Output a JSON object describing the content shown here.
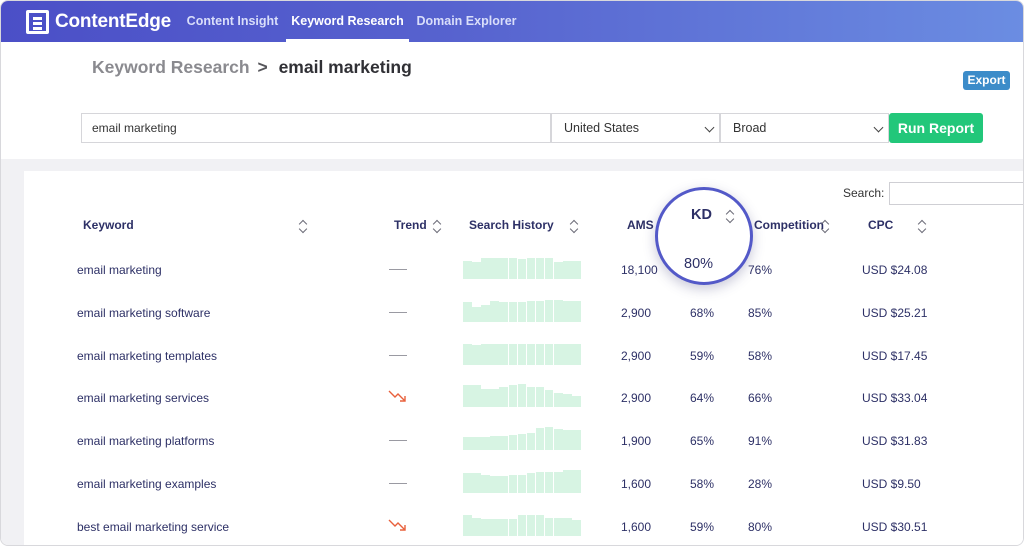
{
  "app": {
    "name": "ContentEdge"
  },
  "nav": {
    "tabs": [
      {
        "label": "Content Insight",
        "active": false
      },
      {
        "label": "Keyword Research",
        "active": true
      },
      {
        "label": "Domain Explorer",
        "active": false
      }
    ]
  },
  "breadcrumb": {
    "parent": "Keyword Research",
    "separator": ">",
    "current": "email marketing"
  },
  "export_label": "Export",
  "query": {
    "keyword_value": "email marketing",
    "country": "United States",
    "match_type": "Broad",
    "run_label": "Run Report"
  },
  "table_search": {
    "label": "Search:",
    "value": ""
  },
  "columns": {
    "keyword": "Keyword",
    "trend": "Trend",
    "history": "Search History",
    "ams": "AMS",
    "kd": "KD",
    "competition": "Competition",
    "cpc": "CPC"
  },
  "spotlight": {
    "label": "KD",
    "value": "80%"
  },
  "rows": [
    {
      "keyword": "email marketing",
      "trend": "flat",
      "history": [
        0.78,
        0.72,
        0.9,
        0.92,
        0.92,
        0.92,
        0.88,
        0.92,
        0.92,
        0.92,
        0.75,
        0.8,
        0.78
      ],
      "ams": "18,100",
      "kd": "80%",
      "competition": "76%",
      "cpc": "USD $24.08"
    },
    {
      "keyword": "email marketing software",
      "trend": "flat",
      "history": [
        0.85,
        0.65,
        0.75,
        0.9,
        0.85,
        0.85,
        0.85,
        0.9,
        0.9,
        0.95,
        0.95,
        0.9,
        0.9
      ],
      "ams": "2,900",
      "kd": "68%",
      "competition": "85%",
      "cpc": "USD $25.21"
    },
    {
      "keyword": "email marketing templates",
      "trend": "flat",
      "history": [
        0.9,
        0.85,
        0.92,
        0.92,
        0.92,
        0.92,
        0.92,
        0.92,
        0.92,
        0.92,
        0.92,
        0.92,
        0.92
      ],
      "ams": "2,900",
      "kd": "59%",
      "competition": "58%",
      "cpc": "USD $17.45"
    },
    {
      "keyword": "email marketing services",
      "trend": "down",
      "history": [
        0.95,
        0.95,
        0.8,
        0.8,
        0.88,
        0.95,
        1.0,
        0.88,
        0.88,
        0.75,
        0.6,
        0.55,
        0.5
      ],
      "ams": "2,900",
      "kd": "64%",
      "competition": "66%",
      "cpc": "USD $33.04"
    },
    {
      "keyword": "email marketing platforms",
      "trend": "flat",
      "history": [
        0.55,
        0.55,
        0.55,
        0.6,
        0.6,
        0.65,
        0.68,
        0.75,
        0.95,
        1.0,
        0.9,
        0.85,
        0.88
      ],
      "ams": "1,900",
      "kd": "65%",
      "competition": "91%",
      "cpc": "USD $31.83"
    },
    {
      "keyword": "email marketing examples",
      "trend": "flat",
      "history": [
        0.85,
        0.85,
        0.8,
        0.75,
        0.75,
        0.8,
        0.8,
        0.85,
        0.9,
        0.9,
        0.9,
        1.0,
        1.0
      ],
      "ams": "1,600",
      "kd": "58%",
      "competition": "28%",
      "cpc": "USD $9.50"
    },
    {
      "keyword": "best email marketing service",
      "trend": "down",
      "history": [
        0.9,
        0.8,
        0.75,
        0.75,
        0.75,
        0.75,
        0.9,
        0.9,
        0.9,
        0.8,
        0.8,
        0.8,
        0.7
      ],
      "ams": "1,600",
      "kd": "59%",
      "competition": "80%",
      "cpc": "USD $30.51"
    }
  ],
  "colors": {
    "accent": "#4b4fc7",
    "run": "#22c77a",
    "export": "#3c8cc9",
    "history_bar": "#d7f4e3",
    "trend_down": "#e8603c"
  }
}
